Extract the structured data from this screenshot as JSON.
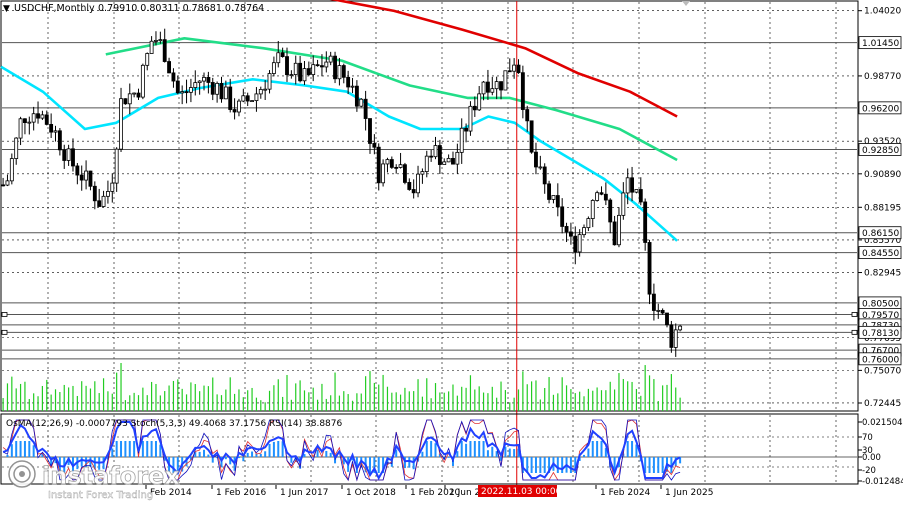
{
  "header": {
    "symbol_label": "USDCHF,Monthly",
    "ohlc_label": "0.79910 0.80311 0.78681 0.78764"
  },
  "price_axis": {
    "ticks": [
      "1.04020",
      "0.98770",
      "0.93520",
      "0.90890",
      "0.88195",
      "0.85570",
      "0.82945",
      "0.77695",
      "0.75070",
      "0.72445"
    ],
    "levels": [
      {
        "label": "1.01450",
        "value": 1.0145,
        "style": "box"
      },
      {
        "label": "0.96200",
        "value": 0.962,
        "style": "box"
      },
      {
        "label": "0.92850",
        "value": 0.9285,
        "style": "box"
      },
      {
        "label": "0.86150",
        "value": 0.8615,
        "style": "box"
      },
      {
        "label": "0.84550",
        "value": 0.8455,
        "style": "box"
      },
      {
        "label": "0.80500",
        "value": 0.805,
        "style": "box"
      },
      {
        "label": "0.79570",
        "value": 0.7957,
        "style": "box"
      },
      {
        "label": "0.78730",
        "value": 0.7873,
        "style": "box"
      },
      {
        "label": "0.78130",
        "value": 0.7813,
        "style": "box"
      },
      {
        "label": "0.76700",
        "value": 0.767,
        "style": "box"
      },
      {
        "label": "0.76000",
        "value": 0.76,
        "style": "box"
      }
    ],
    "current_price": "0.78764"
  },
  "indicator_panel": {
    "title": "OsMA(12,26,9) -0.0007793  Stoch(5,3,3) 49.4068 37.1756  RSI(14) 38.8876",
    "ticks": [
      "0.021504",
      "70",
      "30",
      "0.00",
      "-20",
      "-0.012484"
    ]
  },
  "time_axis": {
    "labels": [
      "Feb 2014",
      "1 Feb 2016",
      "1 Jun 2017",
      "1 Oct 2018",
      "1 Feb 2020",
      "1 Jun 2",
      "1 Feb 2024",
      "1 Jun 2025"
    ],
    "highlight_label": "2022.11.03 00:00"
  },
  "watermark": {
    "brand": "instaforex",
    "tagline": "Instant Forex Trading"
  },
  "colors": {
    "bull": "#000000",
    "bear": "#000000",
    "ma_fast": "#00E5FF",
    "ma_mid": "#22DD88",
    "ma_slow": "#E00000",
    "volume": "#22CC22",
    "osma": "#1E90FF",
    "stoch_main": "#1010C0",
    "stoch_signal": "#E03030",
    "rsi": "#2040FF",
    "marker_line": "#E00000",
    "grid": "#000000"
  },
  "chart_data": {
    "type": "candlestick",
    "timeframe": "monthly",
    "symbol": "USDCHF",
    "price_range": [
      0.718,
      1.048
    ],
    "grid": true,
    "close_path": [
      [
        2013.1,
        0.9
      ],
      [
        2013.4,
        0.955
      ],
      [
        2013.7,
        0.96
      ],
      [
        2014.0,
        0.945
      ],
      [
        2014.3,
        0.92
      ],
      [
        2014.6,
        0.905
      ],
      [
        2014.9,
        0.885
      ],
      [
        2015.1,
        0.9
      ],
      [
        2015.3,
        0.97
      ],
      [
        2015.6,
        0.975
      ],
      [
        2015.9,
        1.02
      ],
      [
        2016.1,
        1.01
      ],
      [
        2016.4,
        0.97
      ],
      [
        2016.8,
        0.985
      ],
      [
        2017.1,
        0.98
      ],
      [
        2017.5,
        0.96
      ],
      [
        2017.9,
        0.975
      ],
      [
        2018.3,
        1.0
      ],
      [
        2018.8,
        0.985
      ],
      [
        2019.2,
        1.0
      ],
      [
        2019.6,
        0.985
      ],
      [
        2019.9,
        0.965
      ],
      [
        2020.2,
        0.91
      ],
      [
        2020.5,
        0.925
      ],
      [
        2020.9,
        0.895
      ],
      [
        2021.2,
        0.93
      ],
      [
        2021.6,
        0.915
      ],
      [
        2021.9,
        0.95
      ],
      [
        2022.2,
        0.985
      ],
      [
        2022.5,
        0.98
      ],
      [
        2022.84,
        1.005
      ],
      [
        2023.1,
        0.925
      ],
      [
        2023.4,
        0.895
      ],
      [
        2023.7,
        0.87
      ],
      [
        2023.9,
        0.85
      ],
      [
        2024.1,
        0.865
      ],
      [
        2024.4,
        0.905
      ],
      [
        2024.7,
        0.855
      ],
      [
        2024.95,
        0.905
      ],
      [
        2025.2,
        0.88
      ],
      [
        2025.4,
        0.81
      ],
      [
        2025.6,
        0.795
      ],
      [
        2025.8,
        0.775
      ],
      [
        2025.95,
        0.79
      ]
    ],
    "moving_averages": [
      {
        "color_key": "ma_slow",
        "points": [
          [
            2016.2,
            1.055
          ],
          [
            2017.5,
            1.057
          ],
          [
            2019.0,
            1.052
          ],
          [
            2020.5,
            1.04
          ],
          [
            2021.8,
            1.025
          ],
          [
            2023.0,
            1.01
          ],
          [
            2024.0,
            0.99
          ],
          [
            2025.0,
            0.975
          ],
          [
            2025.9,
            0.955
          ]
        ]
      },
      {
        "color_key": "ma_mid",
        "points": [
          [
            2015.0,
            1.005
          ],
          [
            2016.5,
            1.018
          ],
          [
            2018.0,
            1.01
          ],
          [
            2019.5,
            1.0
          ],
          [
            2020.8,
            0.98
          ],
          [
            2021.9,
            0.97
          ],
          [
            2022.7,
            0.97
          ],
          [
            2023.6,
            0.96
          ],
          [
            2024.8,
            0.945
          ],
          [
            2025.9,
            0.92
          ]
        ]
      },
      {
        "color_key": "ma_fast",
        "points": [
          [
            2013.0,
            0.995
          ],
          [
            2013.8,
            0.975
          ],
          [
            2014.6,
            0.945
          ],
          [
            2015.2,
            0.95
          ],
          [
            2016.0,
            0.97
          ],
          [
            2016.8,
            0.978
          ],
          [
            2017.8,
            0.985
          ],
          [
            2018.8,
            0.98
          ],
          [
            2019.6,
            0.975
          ],
          [
            2020.4,
            0.955
          ],
          [
            2021.0,
            0.945
          ],
          [
            2021.8,
            0.945
          ],
          [
            2022.3,
            0.955
          ],
          [
            2022.8,
            0.95
          ],
          [
            2023.3,
            0.935
          ],
          [
            2023.9,
            0.92
          ],
          [
            2024.5,
            0.905
          ],
          [
            2025.1,
            0.885
          ],
          [
            2025.9,
            0.855
          ]
        ]
      }
    ],
    "marker_date": 2022.84
  }
}
